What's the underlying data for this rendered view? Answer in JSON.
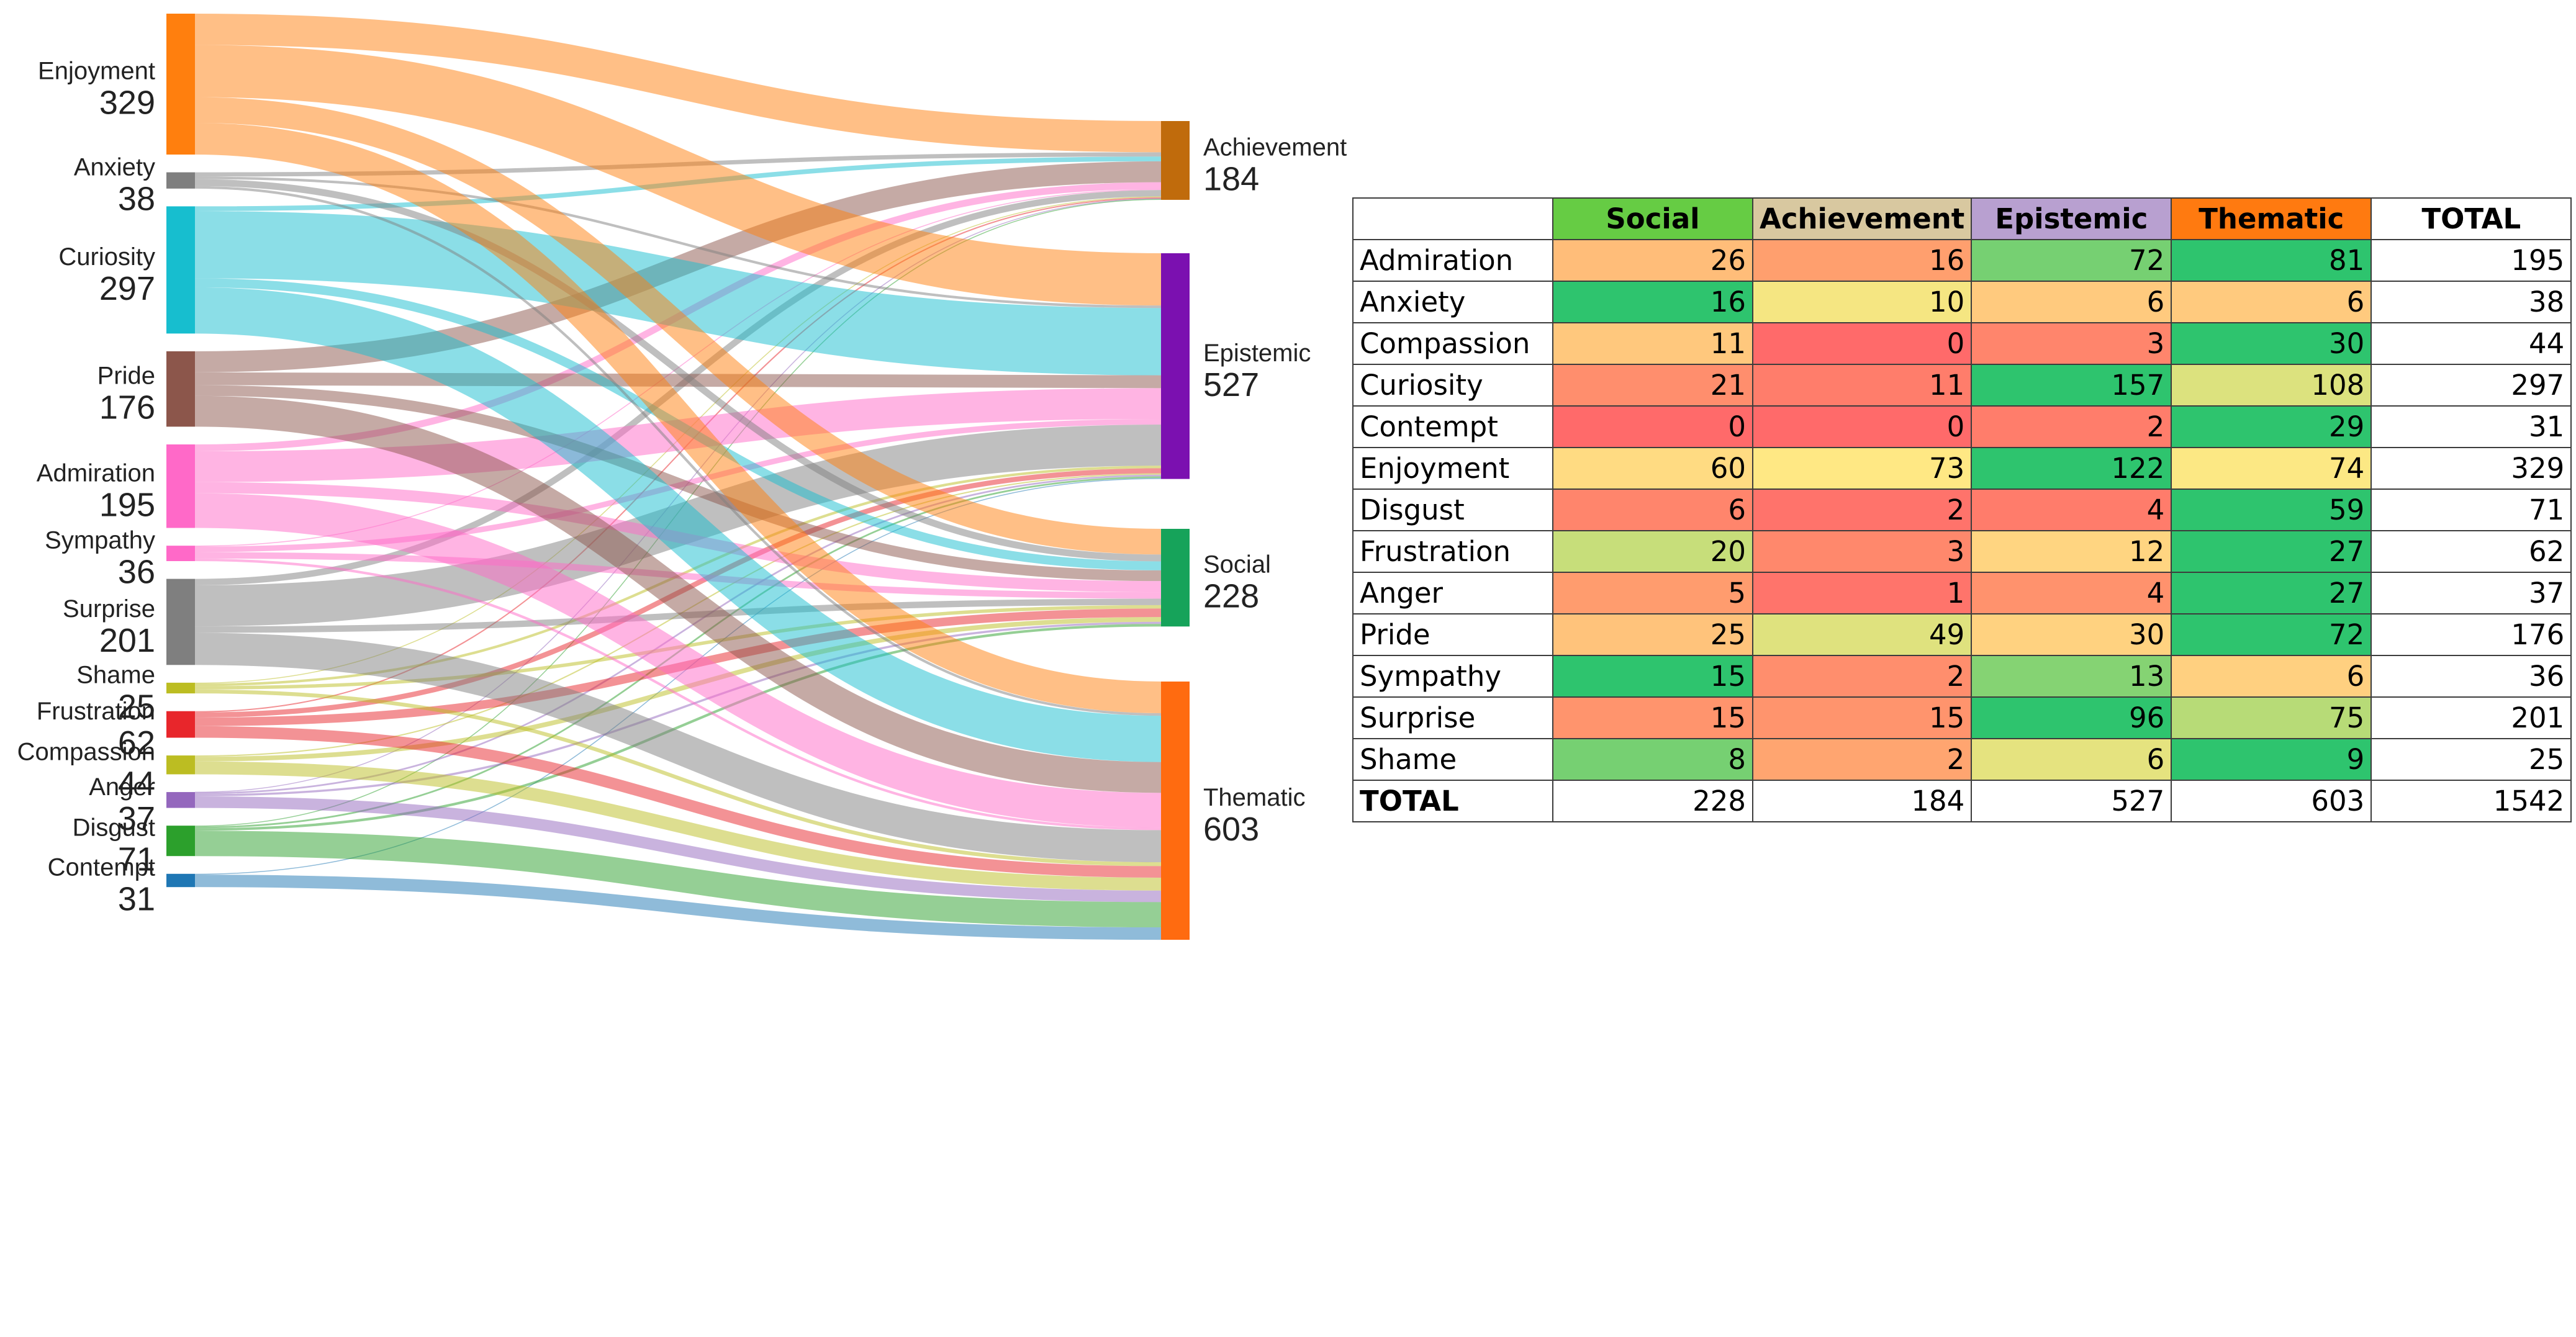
{
  "chart_data": [
    {
      "type": "sankey",
      "title": "",
      "sources": [
        {
          "name": "Enjoyment",
          "value": 329,
          "color": "#ff7f0e"
        },
        {
          "name": "Anxiety",
          "value": 38,
          "color": "#7f7f7f"
        },
        {
          "name": "Curiosity",
          "value": 297,
          "color": "#17becf"
        },
        {
          "name": "Pride",
          "value": 176,
          "color": "#8c564b"
        },
        {
          "name": "Admiration",
          "value": 195,
          "color": "#ff69c8"
        },
        {
          "name": "Sympathy",
          "value": 36,
          "color": "#ff69c8"
        },
        {
          "name": "Surprise",
          "value": 201,
          "color": "#7f7f7f"
        },
        {
          "name": "Shame",
          "value": 25,
          "color": "#bcbd22"
        },
        {
          "name": "Frustration",
          "value": 62,
          "color": "#e8262b"
        },
        {
          "name": "Compassion",
          "value": 44,
          "color": "#bcbd22"
        },
        {
          "name": "Anger",
          "value": 37,
          "color": "#9467bd"
        },
        {
          "name": "Disgust",
          "value": 71,
          "color": "#2ca02c"
        },
        {
          "name": "Contempt",
          "value": 31,
          "color": "#1f77b4"
        }
      ],
      "targets": [
        {
          "name": "Achievement",
          "value": 184,
          "color": "#c06b0c"
        },
        {
          "name": "Epistemic",
          "value": 527,
          "color": "#7b10b0"
        },
        {
          "name": "Social",
          "value": 228,
          "color": "#16a35a"
        },
        {
          "name": "Thematic",
          "value": 603,
          "color": "#ff6b10"
        }
      ],
      "flow_order": [
        "Achievement",
        "Epistemic",
        "Social",
        "Thematic"
      ],
      "flows": {
        "Enjoyment": [
          73,
          122,
          60,
          74
        ],
        "Anxiety": [
          10,
          6,
          16,
          6
        ],
        "Curiosity": [
          11,
          157,
          21,
          108
        ],
        "Pride": [
          49,
          30,
          25,
          72
        ],
        "Admiration": [
          16,
          72,
          26,
          81
        ],
        "Sympathy": [
          2,
          13,
          15,
          6
        ],
        "Surprise": [
          15,
          96,
          15,
          75
        ],
        "Shame": [
          2,
          6,
          8,
          9
        ],
        "Frustration": [
          3,
          12,
          20,
          27
        ],
        "Compassion": [
          0,
          3,
          11,
          30
        ],
        "Anger": [
          1,
          4,
          5,
          27
        ],
        "Disgust": [
          2,
          4,
          6,
          59
        ],
        "Contempt": [
          0,
          2,
          0,
          29
        ]
      }
    },
    {
      "type": "table",
      "columns": [
        "Social",
        "Achievement",
        "Epistemic",
        "Thematic",
        "TOTAL"
      ],
      "header_colors": [
        "#66cc44",
        "#d8c8a0",
        "#b8a0d0",
        "#ff7a10",
        "#ffffff"
      ],
      "rows": [
        {
          "label": "Admiration",
          "values": [
            26,
            16,
            72,
            81,
            195
          ]
        },
        {
          "label": "Anxiety",
          "values": [
            16,
            10,
            6,
            6,
            38
          ]
        },
        {
          "label": "Compassion",
          "values": [
            11,
            0,
            3,
            30,
            44
          ]
        },
        {
          "label": "Curiosity",
          "values": [
            21,
            11,
            157,
            108,
            297
          ]
        },
        {
          "label": "Contempt",
          "values": [
            0,
            0,
            2,
            29,
            31
          ]
        },
        {
          "label": "Enjoyment",
          "values": [
            60,
            73,
            122,
            74,
            329
          ]
        },
        {
          "label": "Disgust",
          "values": [
            6,
            2,
            4,
            59,
            71
          ]
        },
        {
          "label": "Frustration",
          "values": [
            20,
            3,
            12,
            27,
            62
          ]
        },
        {
          "label": "Anger",
          "values": [
            5,
            1,
            4,
            27,
            37
          ]
        },
        {
          "label": "Pride",
          "values": [
            25,
            49,
            30,
            72,
            176
          ]
        },
        {
          "label": "Sympathy",
          "values": [
            15,
            2,
            13,
            6,
            36
          ]
        },
        {
          "label": "Surprise",
          "values": [
            15,
            15,
            96,
            75,
            201
          ]
        },
        {
          "label": "Shame",
          "values": [
            8,
            2,
            6,
            9,
            25
          ]
        }
      ],
      "total_row": {
        "label": "TOTAL",
        "values": [
          228,
          184,
          527,
          603,
          1542
        ]
      }
    }
  ]
}
